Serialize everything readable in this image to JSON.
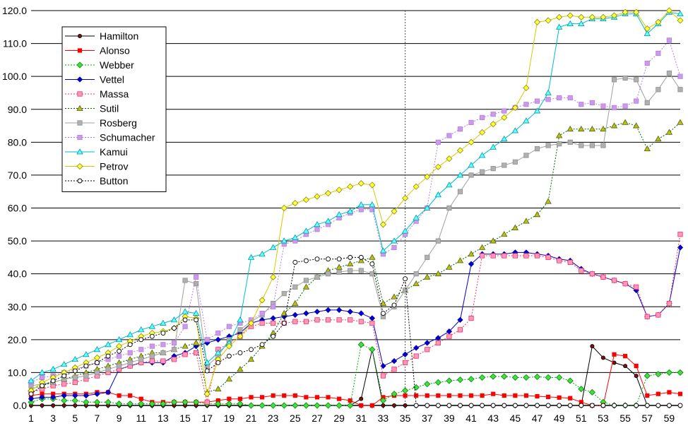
{
  "chart_data": {
    "type": "line",
    "title": "",
    "xlabel": "",
    "ylabel": "",
    "x": [
      1,
      2,
      3,
      4,
      5,
      6,
      7,
      8,
      9,
      10,
      11,
      12,
      13,
      14,
      15,
      16,
      17,
      18,
      19,
      20,
      21,
      22,
      23,
      24,
      25,
      26,
      27,
      28,
      29,
      30,
      31,
      32,
      33,
      34,
      35,
      36,
      37,
      38,
      39,
      40,
      41,
      42,
      43,
      44,
      45,
      46,
      47,
      48,
      49,
      50,
      51,
      52,
      53,
      54,
      55,
      56,
      57,
      58,
      59,
      60
    ],
    "xtick_labels": [
      "1",
      "3",
      "5",
      "7",
      "9",
      "11",
      "13",
      "15",
      "17",
      "19",
      "21",
      "23",
      "25",
      "27",
      "29",
      "31",
      "33",
      "35",
      "37",
      "39",
      "41",
      "43",
      "45",
      "47",
      "49",
      "51",
      "53",
      "55",
      "57",
      "59"
    ],
    "ylim": [
      0,
      120
    ],
    "ytick_labels": [
      "0.0",
      "10.0",
      "20.0",
      "30.0",
      "40.0",
      "50.0",
      "60.0",
      "70.0",
      "80.0",
      "90.0",
      "100.0",
      "110.0",
      "120.0"
    ],
    "grid": "horizontal",
    "vline_x": 35,
    "legend_position": "top-left",
    "series": [
      {
        "name": "Hamilton",
        "color": "#000000",
        "marker": "circle-filled",
        "dash": "solid",
        "values": [
          0,
          0,
          0,
          0,
          0,
          0,
          0,
          0,
          0,
          0,
          0,
          0,
          0,
          0,
          0,
          0,
          0,
          0,
          0,
          0,
          0,
          0,
          0,
          0,
          0,
          0,
          0,
          0,
          0,
          0,
          2,
          17,
          0,
          0,
          0,
          0,
          0,
          0,
          0,
          0,
          0,
          0,
          0,
          0,
          0,
          0,
          0,
          0,
          0,
          0,
          0,
          18,
          14.5,
          13,
          12,
          9,
          0,
          0,
          0,
          0
        ]
      },
      {
        "name": "Alonso",
        "color": "#ff0000",
        "marker": "square",
        "dash": "solid",
        "values": [
          3,
          3.5,
          3.5,
          3.5,
          3.5,
          3.5,
          4,
          4,
          3,
          3,
          2,
          1,
          1,
          1,
          1,
          1,
          1,
          1.5,
          2,
          2,
          2.5,
          2.5,
          3,
          3,
          3,
          2.5,
          2.5,
          2.5,
          2,
          1.5,
          0,
          0,
          2.5,
          3,
          3,
          3,
          3,
          3,
          3,
          3,
          3,
          3,
          3.5,
          3,
          3,
          3,
          2.8,
          2.6,
          2.4,
          2.2,
          1,
          0,
          0,
          15.5,
          15,
          12,
          3,
          3.5,
          4,
          3.5
        ]
      },
      {
        "name": "Webber",
        "color": "#00aa00",
        "marker": "diamond-green",
        "dash": "dot",
        "values": [
          1,
          2,
          2,
          1.5,
          1.5,
          1,
          1,
          1,
          0.5,
          0.5,
          0.5,
          0.5,
          0.5,
          1,
          1,
          1,
          0.5,
          0.5,
          0.5,
          0.5,
          0,
          0,
          0,
          0,
          0,
          0,
          0,
          0,
          0,
          0,
          18.5,
          17,
          1.5,
          3.5,
          4.5,
          5.5,
          6.5,
          7,
          7.5,
          7.8,
          8,
          8.5,
          8.8,
          8.8,
          8.5,
          8.5,
          8.7,
          8.5,
          8.5,
          7.5,
          5,
          4,
          1,
          0,
          0,
          0,
          9,
          9.5,
          10,
          10
        ]
      },
      {
        "name": "Vettel",
        "color": "#0000cc",
        "marker": "diamond-blue",
        "dash": "solid",
        "values": [
          2,
          2.5,
          2.5,
          3,
          3,
          3,
          3.5,
          4,
          11,
          12,
          13,
          13,
          13,
          15,
          16,
          18,
          19,
          20,
          21,
          22,
          25,
          26,
          26.5,
          27,
          27.5,
          28,
          28.5,
          29,
          29,
          28.5,
          28,
          26.5,
          12,
          13.5,
          15.5,
          17.5,
          19,
          20.5,
          22.5,
          26,
          43,
          46,
          46,
          46,
          46.5,
          46.5,
          46,
          45.5,
          44.5,
          44,
          41.5,
          40,
          39,
          38,
          37,
          35,
          27,
          27.5,
          31,
          48
        ]
      },
      {
        "name": "Massa",
        "color": "#ee3366",
        "marker": "square-pink",
        "dash": "dot",
        "values": [
          4,
          5,
          6,
          6.5,
          7,
          8,
          9,
          10,
          11,
          12,
          13,
          13.5,
          13.5,
          14,
          15.5,
          16,
          1,
          17,
          19,
          21,
          24,
          25,
          25,
          25,
          25.5,
          25.5,
          26,
          26,
          26,
          26,
          25.5,
          25,
          9,
          11,
          13,
          15,
          17,
          19,
          21,
          23,
          26.5,
          45.5,
          45.5,
          45.5,
          45.5,
          45.5,
          45.5,
          45,
          44,
          43.5,
          41,
          40,
          39,
          38,
          37,
          36,
          27,
          27.5,
          31,
          52
        ]
      },
      {
        "name": "Sutil",
        "color": "#006600",
        "marker": "triangle-olive",
        "dash": "dot",
        "values": [
          5,
          6,
          7,
          8,
          9,
          10,
          11,
          12,
          13,
          14,
          15,
          16,
          16,
          17,
          18,
          19,
          4,
          5,
          8,
          11,
          14,
          18,
          22,
          28,
          31,
          36,
          39,
          41,
          42,
          43,
          44,
          45,
          31,
          33,
          35,
          37,
          39,
          40,
          42,
          44,
          46,
          48,
          50,
          52,
          54,
          56,
          58,
          62,
          82,
          84,
          84,
          84,
          84,
          85,
          86,
          85,
          78,
          81,
          83,
          86
        ]
      },
      {
        "name": "Rosberg",
        "color": "#a0a0a0",
        "marker": "square-gray",
        "dash": "solid",
        "values": [
          6,
          6.5,
          7,
          8,
          8.5,
          9,
          10,
          11,
          12,
          13,
          14,
          15,
          16,
          17,
          38,
          37,
          12,
          15,
          20,
          23,
          25.5,
          27.5,
          31,
          34,
          36,
          38,
          39,
          40,
          40.5,
          41,
          41,
          40,
          27,
          30,
          35,
          40,
          45,
          50,
          60,
          65,
          70,
          71,
          72,
          73,
          74,
          76,
          78,
          79,
          79.5,
          80,
          79,
          79,
          79,
          99,
          99.5,
          99,
          92,
          96,
          101,
          96
        ]
      },
      {
        "name": "Schumacher",
        "color": "#b580d8",
        "marker": "square-purple",
        "dash": "dot",
        "values": [
          7,
          8.5,
          9,
          10,
          11,
          12,
          13,
          14,
          15,
          16,
          17,
          18,
          18.5,
          19,
          24,
          39,
          20,
          22,
          24,
          25,
          26,
          28,
          30,
          49,
          50,
          52,
          53.5,
          55,
          57,
          58.5,
          59.5,
          59.5,
          46,
          48,
          52,
          56,
          60,
          80,
          82,
          84,
          86,
          87.5,
          88.5,
          89.5,
          90.5,
          91.5,
          92.5,
          93,
          93.5,
          93.5,
          91.5,
          92,
          91,
          90.5,
          91,
          92.5,
          104,
          107,
          111,
          100
        ]
      },
      {
        "name": "Kamui",
        "color": "#00bbcc",
        "marker": "triangle-cyan",
        "dash": "solid",
        "values": [
          7.5,
          10,
          11,
          12.5,
          14,
          15.5,
          17,
          18.5,
          20,
          21.5,
          23,
          24,
          25,
          26,
          28.5,
          28,
          13,
          16,
          19,
          26,
          45,
          46,
          48,
          50,
          51,
          53,
          55,
          56,
          58,
          59,
          61,
          61,
          47,
          50,
          53,
          57,
          60,
          64,
          67,
          70,
          73,
          76,
          78.5,
          81,
          83.5,
          86.5,
          89.5,
          95,
          115,
          116,
          116,
          117.5,
          117.5,
          118,
          119,
          119,
          113,
          116,
          119.5,
          119
        ]
      },
      {
        "name": "Petrov",
        "color": "#d8c800",
        "marker": "diamond-yellow",
        "dash": "solid",
        "values": [
          4.5,
          7,
          8.5,
          10,
          11.5,
          13,
          14.5,
          16,
          18,
          19.5,
          21,
          22,
          22.5,
          23.5,
          27,
          26.5,
          3.5,
          14,
          18,
          21,
          25,
          32,
          39,
          60,
          61.5,
          62.5,
          63.5,
          64.5,
          65.5,
          66.5,
          67.5,
          67,
          55,
          59,
          63,
          66.5,
          69.5,
          72.5,
          75,
          77.5,
          80,
          83,
          85.5,
          87.5,
          90.5,
          96.5,
          116.5,
          117,
          118,
          118.5,
          118,
          118,
          118,
          118.5,
          119.5,
          119.5,
          114.5,
          116.5,
          120,
          117
        ]
      },
      {
        "name": "Button",
        "color": "#000000",
        "marker": "circle-open",
        "dash": "dot",
        "values": [
          3.5,
          6,
          7.5,
          9,
          10.5,
          12,
          13,
          15,
          16.5,
          18.5,
          20,
          21,
          22,
          23.5,
          26,
          26,
          10.5,
          13,
          15,
          16,
          17,
          18.5,
          21,
          25,
          43.5,
          44,
          44.5,
          44.5,
          44.5,
          45,
          45,
          43,
          28,
          30.5,
          38.5,
          0,
          0,
          0,
          0,
          0,
          0,
          0,
          0,
          0,
          0,
          0,
          0,
          0,
          0,
          0,
          0,
          0,
          0,
          0,
          0,
          0,
          0,
          0,
          0,
          0
        ]
      }
    ]
  }
}
